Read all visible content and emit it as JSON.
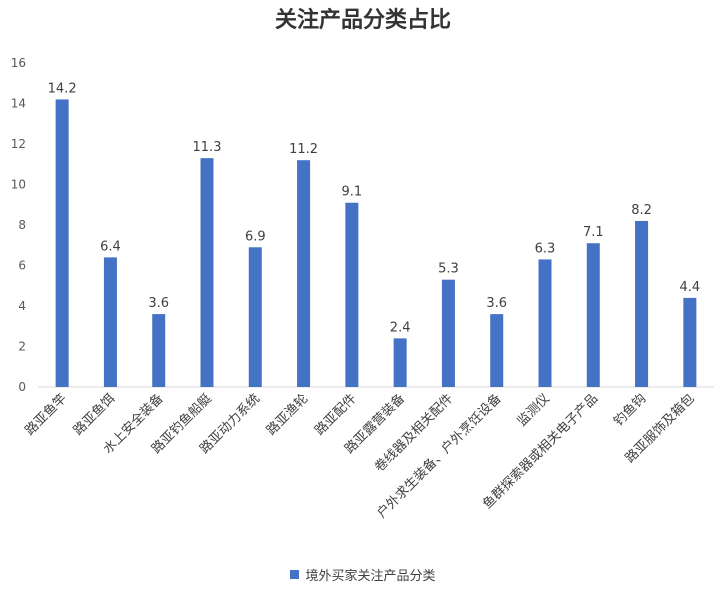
{
  "chart_data": {
    "type": "bar",
    "title": "关注产品分类占比",
    "xlabel": "",
    "ylabel": "",
    "ylim": [
      0,
      16
    ],
    "yticks": [
      0,
      2,
      4,
      6,
      8,
      10,
      12,
      14,
      16
    ],
    "grid": false,
    "legend_position": "bottom",
    "categories": [
      "路亚鱼竿",
      "路亚鱼饵",
      "水上安全装备",
      "路亚钓鱼船艇",
      "路亚动力系统",
      "路亚渔轮",
      "路亚配件",
      "路亚露营装备",
      "卷线器及相关配件",
      "户外求生装备、户外烹饪设备",
      "监测仪",
      "鱼群探索器或相关电子产品",
      "钓鱼钩",
      "路亚服饰及箱包"
    ],
    "series": [
      {
        "name": "境外买家关注产品分类",
        "color": "#4472C4",
        "values": [
          14.2,
          6.4,
          3.6,
          11.3,
          6.9,
          11.2,
          9.1,
          2.4,
          5.3,
          3.6,
          6.3,
          7.1,
          8.2,
          4.4
        ],
        "labels": [
          "14.2",
          "6.4",
          "3.6",
          "11.3",
          "6.9",
          "11.2",
          "9.1",
          "2.4",
          "5.3",
          "3.6",
          "6.3",
          "7.1",
          "8.2",
          "4.4"
        ]
      }
    ]
  }
}
